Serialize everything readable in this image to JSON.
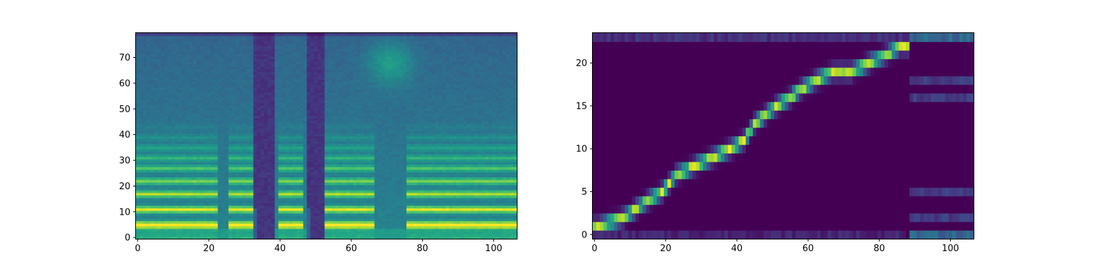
{
  "chart_data": [
    {
      "type": "heatmap",
      "title": "",
      "xlabel": "",
      "ylabel": "",
      "xlim": [
        -0.5,
        106.5
      ],
      "ylim": [
        -0.5,
        79.5
      ],
      "x_ticks": [
        "0",
        "20",
        "40",
        "60",
        "80",
        "100"
      ],
      "y_ticks": [
        "0",
        "10",
        "20",
        "30",
        "40",
        "50",
        "60",
        "70"
      ],
      "colormap": "viridis",
      "grid": false,
      "legend": "none",
      "n_frames": 107,
      "n_bins": 80,
      "voiced_segments": [
        [
          0,
          22
        ],
        [
          26,
          32
        ],
        [
          40,
          46
        ],
        [
          53,
          66
        ],
        [
          76,
          106
        ]
      ],
      "silent_bands": [
        [
          33,
          38
        ],
        [
          48,
          52
        ]
      ],
      "harmonic_bins": [
        5,
        11,
        17,
        22,
        27,
        31,
        35,
        39,
        43
      ]
    },
    {
      "type": "heatmap",
      "title": "",
      "xlabel": "",
      "ylabel": "",
      "xlim": [
        -0.5,
        106.5
      ],
      "ylim": [
        -0.5,
        23.5
      ],
      "x_ticks": [
        "0",
        "20",
        "40",
        "60",
        "80",
        "100"
      ],
      "y_ticks": [
        "0",
        "5",
        "10",
        "15",
        "20"
      ],
      "colormap": "viridis",
      "grid": false,
      "legend": "none",
      "n_frames": 107,
      "n_tokens": 24,
      "alignment_path": [
        [
          0,
          1
        ],
        [
          1,
          1
        ],
        [
          8,
          2
        ],
        [
          15,
          4
        ],
        [
          19,
          5
        ],
        [
          23,
          7
        ],
        [
          28,
          8
        ],
        [
          33,
          9
        ],
        [
          38,
          10
        ],
        [
          42,
          11
        ],
        [
          45,
          13
        ],
        [
          48,
          14
        ],
        [
          51,
          15
        ],
        [
          55,
          16
        ],
        [
          58,
          17
        ],
        [
          62,
          18
        ],
        [
          67,
          19
        ],
        [
          72,
          19
        ],
        [
          77,
          20
        ],
        [
          82,
          21
        ],
        [
          86,
          22
        ],
        [
          106,
          22
        ]
      ]
    }
  ]
}
